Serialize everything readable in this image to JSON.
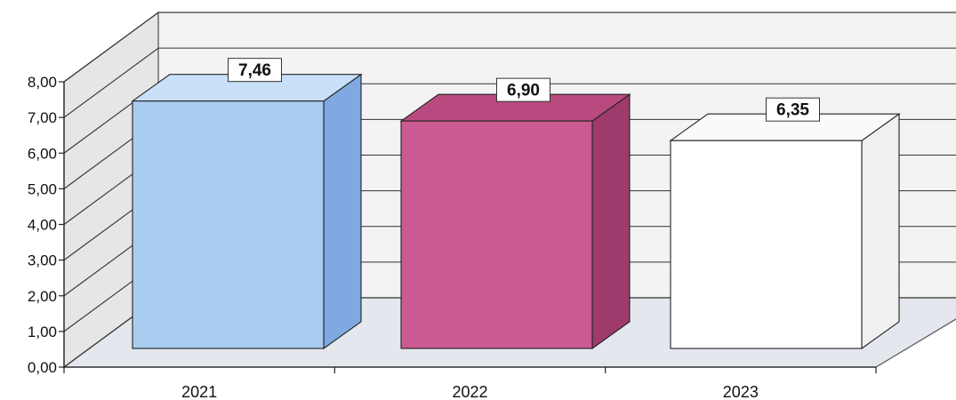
{
  "chart_data": {
    "type": "bar",
    "style": "3d",
    "categories": [
      "2021",
      "2022",
      "2023"
    ],
    "values": [
      7.46,
      6.9,
      6.35
    ],
    "value_labels": [
      "7,46",
      "6,90",
      "6,35"
    ],
    "y_tick_labels": [
      "0,00",
      "1,00",
      "2,00",
      "3,00",
      "4,00",
      "5,00",
      "6,00",
      "7,00",
      "8,00"
    ],
    "ylim": [
      0,
      8
    ],
    "ystep": 1,
    "grid": true,
    "legend": "none",
    "title": "",
    "xlabel": "",
    "ylabel": "",
    "colors": {
      "bars": [
        "#a8cdf0",
        "#cc5a92",
        "#ffffff"
      ],
      "bar_sides": [
        "#7fa9e0",
        "#9e3a6c",
        "#f0f0f0"
      ],
      "bar_tops": [
        "#c8e0f8",
        "#b84a80",
        "#fafafa"
      ],
      "wall": "#f3f3f3",
      "floor": "#e4e8ee",
      "grid": "#333333"
    }
  }
}
